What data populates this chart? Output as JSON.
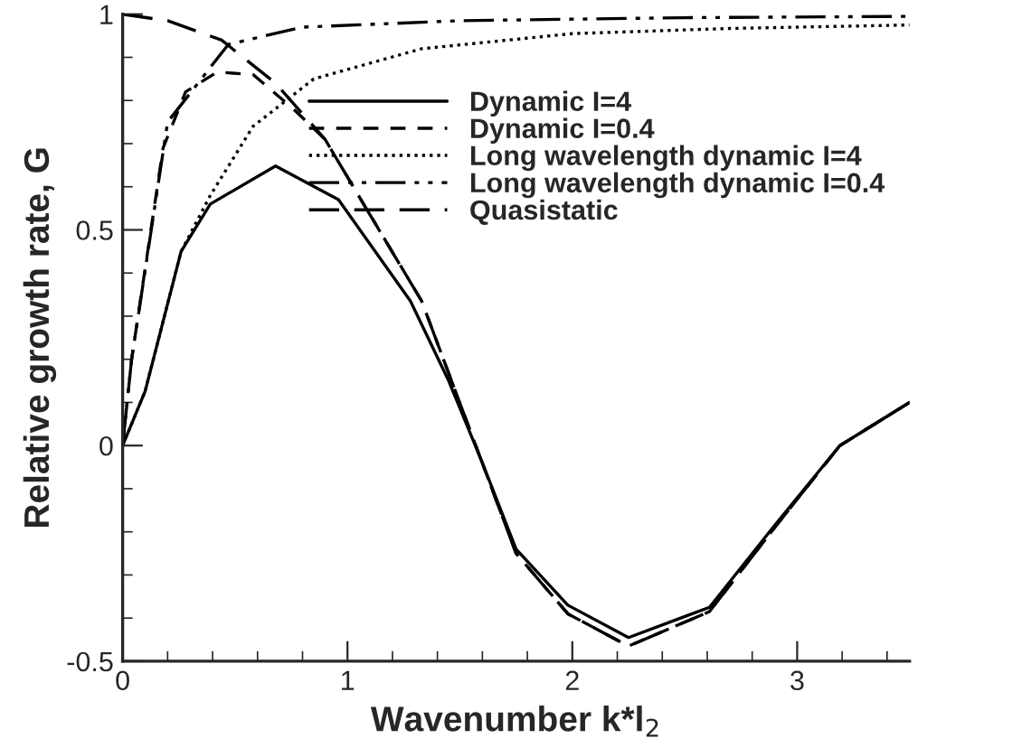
{
  "chart_data": {
    "type": "line",
    "xlabel": "Wavenumber k*l$_{2}$",
    "ylabel": "Relative growth rate, G",
    "xlim": [
      0,
      3.5
    ],
    "ylim": [
      -0.5,
      1
    ],
    "xticks": [
      0,
      1,
      2,
      3
    ],
    "yticks": [
      {
        "value": -0.5,
        "label": "-0.5"
      },
      0,
      0.5,
      1
    ],
    "grid": false,
    "legend": "top right",
    "marker": "none",
    "series": [
      {
        "name": "Dynamic I=4",
        "color": "#000000",
        "line_style": "solid",
        "x": [
          0,
          0.1,
          0.26,
          0.39,
          0.68,
          0.96,
          1.28,
          1.45,
          1.6,
          1.75,
          1.98,
          2.25,
          2.61,
          2.9,
          3.19,
          3.5
        ],
        "values": [
          0,
          0.126,
          0.45,
          0.56,
          0.648,
          0.57,
          0.335,
          0.15,
          -0.04,
          -0.24,
          -0.37,
          -0.445,
          -0.375,
          -0.185,
          0,
          0.1
        ]
      },
      {
        "name": "Dynamic I=0.4",
        "color": "#000000",
        "line_style": "dashed",
        "x": [
          0,
          0.04,
          0.18,
          0.28,
          0.42,
          0.58,
          0.76,
          0.9,
          1.06,
          1.33,
          1.75,
          1.98,
          2.25,
          2.61,
          2.9,
          3.19,
          3.5
        ],
        "values": [
          0,
          0.2,
          0.69,
          0.82,
          0.866,
          0.86,
          0.78,
          0.71,
          0.57,
          0.335,
          -0.25,
          -0.39,
          -0.465,
          -0.385,
          -0.19,
          0,
          0.1
        ]
      },
      {
        "name": "Long wavelength dynamic I=4",
        "color": "#000000",
        "line_style": "dotted",
        "x": [
          0,
          0.1,
          0.26,
          0.39,
          0.58,
          0.85,
          1.33,
          2,
          2.7,
          3.5
        ],
        "values": [
          0,
          0.126,
          0.45,
          0.58,
          0.74,
          0.85,
          0.92,
          0.955,
          0.967,
          0.975
        ]
      },
      {
        "name": "Long wavelength dynamic I=0.4",
        "color": "#000000",
        "line_style": "dashdot",
        "x": [
          0,
          0.04,
          0.2,
          0.47,
          0.8,
          1.5,
          2.5,
          3.5
        ],
        "values": [
          0,
          0.2,
          0.75,
          0.93,
          0.97,
          0.985,
          0.992,
          0.995
        ]
      },
      {
        "name": "Quasistatic",
        "color": "#000000",
        "line_style": "longdash",
        "x": [
          0,
          0.2,
          0.44,
          0.68,
          0.9,
          1.06,
          1.33,
          1.75,
          1.98,
          2.25,
          2.61,
          2.9,
          3.19,
          3.5
        ],
        "values": [
          1,
          0.985,
          0.94,
          0.84,
          0.71,
          0.57,
          0.335,
          -0.25,
          -0.39,
          -0.465,
          -0.385,
          -0.19,
          0,
          0.1
        ]
      }
    ]
  }
}
